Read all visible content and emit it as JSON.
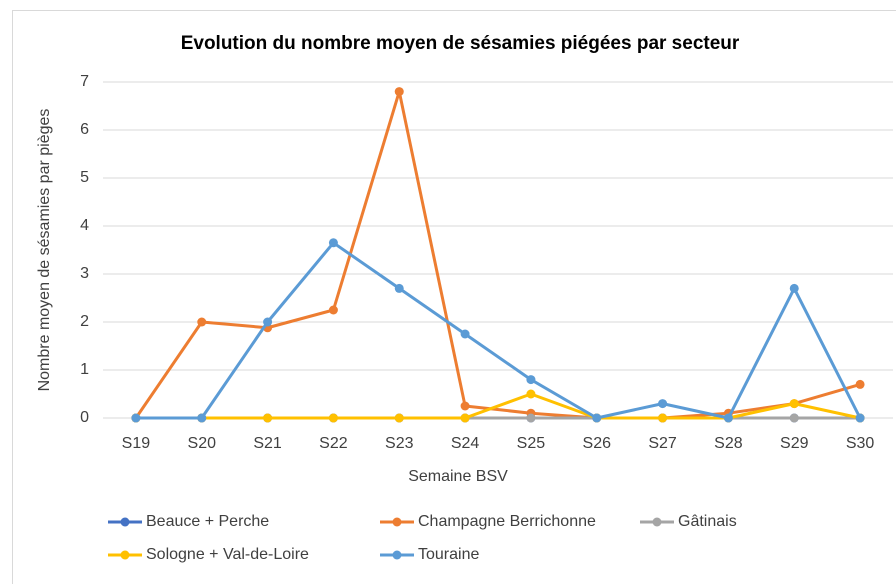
{
  "chart_data": {
    "type": "line",
    "title": "Evolution du nombre moyen de sésamies piégées par secteur",
    "x_label": "Semaine BSV",
    "y_label": "Nombre moyen de sésamies par pièges",
    "categories": [
      "S19",
      "S20",
      "S21",
      "S22",
      "S23",
      "S24",
      "S25",
      "S26",
      "S27",
      "S28",
      "S29",
      "S30"
    ],
    "series": [
      {
        "name": "Beauce + Perche",
        "color": "#4472c4",
        "values": [
          0,
          0,
          0,
          0,
          0,
          0,
          0,
          0,
          0,
          0,
          0,
          0
        ]
      },
      {
        "name": "Champagne Berrichonne",
        "color": "#ed7d31",
        "values": [
          0,
          2,
          1.88,
          2.25,
          6.8,
          0.25,
          0.1,
          0,
          0,
          0.1,
          0.3,
          0.7
        ]
      },
      {
        "name": "Gâtinais",
        "color": "#a5a5a5",
        "values": [
          0,
          0,
          0,
          0,
          0,
          0,
          0,
          0,
          0,
          0,
          0,
          0
        ]
      },
      {
        "name": "Sologne + Val-de-Loire",
        "color": "#ffc000",
        "values": [
          0,
          0,
          0,
          0,
          0,
          0,
          0.5,
          0,
          0,
          0,
          0.3,
          0
        ]
      },
      {
        "name": "Touraine",
        "color": "#5b9bd5",
        "values": [
          0,
          0,
          2,
          3.65,
          2.7,
          1.75,
          0.8,
          0,
          0.3,
          0,
          2.7,
          0
        ]
      }
    ],
    "ylim": [
      0,
      7
    ],
    "yticks": [
      0,
      1,
      2,
      3,
      4,
      5,
      6,
      7
    ],
    "grid": true,
    "legend": "bottom"
  }
}
